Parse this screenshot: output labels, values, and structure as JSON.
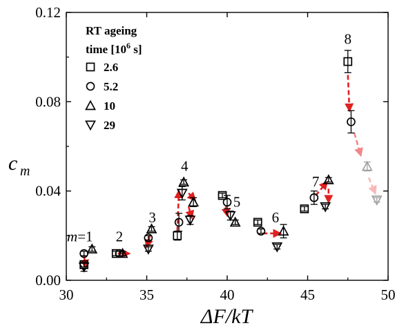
{
  "chart_data": {
    "type": "scatter",
    "xlabel": "ΔF/kT",
    "ylabel": "cm",
    "ylabel_main": "c",
    "ylabel_sub": "m",
    "xlim": [
      30,
      50
    ],
    "ylim": [
      0,
      0.12
    ],
    "x_ticks": [
      30,
      35,
      40,
      45,
      50
    ],
    "x_tick_labels": [
      "30",
      "35",
      "40",
      "45",
      "50"
    ],
    "y_ticks": [
      0,
      0.04,
      0.08,
      0.12
    ],
    "y_tick_labels": [
      "0.00",
      "0.04",
      "0.08",
      "0.12"
    ],
    "grid": false,
    "legend_title_line1": "RT ageing",
    "legend_title_line2": "time [10",
    "legend_title_exp": "6",
    "legend_title_end": " s]",
    "legend_position": "top-left",
    "series": [
      {
        "name": "2.6",
        "marker": "square",
        "color": "#000000",
        "x": [
          31.1,
          33.1,
          36.9,
          39.7,
          41.9,
          44.8,
          47.5
        ],
        "y": [
          0.007,
          0.012,
          0.02,
          0.038,
          0.026,
          0.032,
          0.098
        ],
        "err": [
          0.001,
          0.001,
          0.002,
          0.001,
          0.001,
          0.001,
          0.005
        ]
      },
      {
        "name": "5.2",
        "marker": "circle",
        "color": "#000000",
        "x": [
          31.1,
          33.3,
          35.1,
          37.0,
          40.0,
          42.1,
          45.4,
          47.7
        ],
        "y": [
          0.012,
          0.012,
          0.019,
          0.026,
          0.035,
          0.022,
          0.037,
          0.071
        ],
        "err": [
          0.001,
          0.001,
          0.001,
          0.004,
          0.003,
          0.001,
          0.003,
          0.005
        ]
      },
      {
        "name": "10",
        "marker": "triangle-up",
        "color": "#000000",
        "x": [
          31.6,
          33.5,
          35.3,
          37.3,
          37.9,
          40.5,
          43.5,
          46.3
        ],
        "y": [
          0.014,
          0.012,
          0.023,
          0.044,
          0.035,
          0.026,
          0.022,
          0.045
        ],
        "err": [
          0.001,
          0.001,
          0.001,
          0.001,
          0.002,
          0.001,
          0.003,
          0.001
        ]
      },
      {
        "name": "",
        "marker": "triangle-up",
        "color": "#a0a0a0",
        "x": [
          48.7
        ],
        "y": [
          0.051
        ],
        "err": [
          0.002
        ]
      },
      {
        "name": "29",
        "marker": "triangle-down",
        "color": "#000000",
        "x": [
          31.1,
          35.1,
          37.2,
          37.7,
          40.2,
          43.1,
          46.1
        ],
        "y": [
          0.006,
          0.014,
          0.039,
          0.027,
          0.029,
          0.015,
          0.033
        ],
        "err": [
          0.002,
          0.001,
          0.003,
          0.002,
          0.002,
          0.001,
          0.001
        ]
      },
      {
        "name": "",
        "marker": "triangle-down",
        "color": "#a0a0a0",
        "x": [
          49.3
        ],
        "y": [
          0.036
        ],
        "err": [
          0.001
        ]
      }
    ],
    "annotations": [
      {
        "text": "m",
        "suffix": "=1",
        "x": 30.85,
        "y": 0.0175
      },
      {
        "text": "2",
        "x": 33.3,
        "y": 0.0175
      },
      {
        "text": "3",
        "x": 35.35,
        "y": 0.026
      },
      {
        "text": "4",
        "x": 37.35,
        "y": 0.049
      },
      {
        "text": "5",
        "x": 40.6,
        "y": 0.033
      },
      {
        "text": "6",
        "x": 43.0,
        "y": 0.026
      },
      {
        "text": "7",
        "x": 45.5,
        "y": 0.042
      },
      {
        "text": "8",
        "x": 47.5,
        "y": 0.106
      }
    ],
    "arrows": [
      {
        "from": [
          31.1,
          0.011
        ],
        "to": [
          31.2,
          0.006
        ],
        "color": "#e02020"
      },
      {
        "from": [
          33.2,
          0.012
        ],
        "to": [
          33.9,
          0.012
        ],
        "color": "#e02020"
      },
      {
        "from": [
          35.2,
          0.02
        ],
        "to": [
          35.0,
          0.015
        ],
        "color": "#e02020"
      },
      {
        "from": [
          36.9,
          0.022
        ],
        "to": [
          37.0,
          0.04
        ],
        "color": "#e02020"
      },
      {
        "from": [
          37.6,
          0.039
        ],
        "to": [
          38.0,
          0.036
        ],
        "color": "#e02020"
      },
      {
        "from": [
          37.6,
          0.033
        ],
        "to": [
          37.8,
          0.028
        ],
        "color": "#e02020"
      },
      {
        "from": [
          39.9,
          0.033
        ],
        "to": [
          40.0,
          0.029
        ],
        "color": "#e02020"
      },
      {
        "from": [
          42.2,
          0.021
        ],
        "to": [
          43.3,
          0.021
        ],
        "color": "#e02020"
      },
      {
        "from": [
          45.5,
          0.038
        ],
        "to": [
          46.2,
          0.044
        ],
        "color": "#e02020"
      },
      {
        "from": [
          46.3,
          0.041
        ],
        "to": [
          46.3,
          0.035
        ],
        "color": "#e02020"
      },
      {
        "from": [
          47.5,
          0.092
        ],
        "to": [
          47.6,
          0.076
        ],
        "color": "#e02020"
      },
      {
        "from": [
          47.9,
          0.066
        ],
        "to": [
          48.3,
          0.056
        ],
        "color": "#f08888"
      },
      {
        "from": [
          48.8,
          0.046
        ],
        "to": [
          49.2,
          0.039
        ],
        "color": "#f8b8b8"
      }
    ]
  }
}
